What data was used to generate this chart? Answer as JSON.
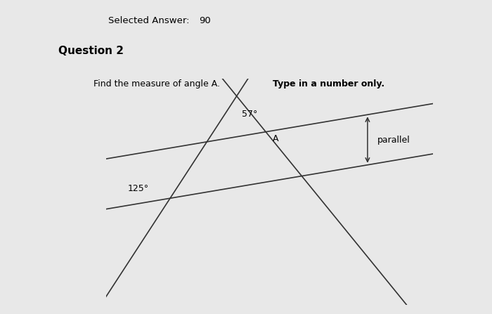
{
  "selected_answer_label": "Selected Answer:",
  "selected_answer_value": "90",
  "question_label": "Question 2",
  "question_text_normal": "Find the measure of angle A.  ",
  "question_text_bold": "Type in a number only.",
  "angle_57": "57°",
  "angle_125": "125°",
  "label_A": "A",
  "label_parallel": "parallel",
  "outer_bg": "#e8e8e8",
  "header_bg": "#cccccc",
  "content_bg": "#ffffff",
  "diagram_bg": "#ebebeb",
  "line_color": "#333333",
  "text_color": "#000000"
}
